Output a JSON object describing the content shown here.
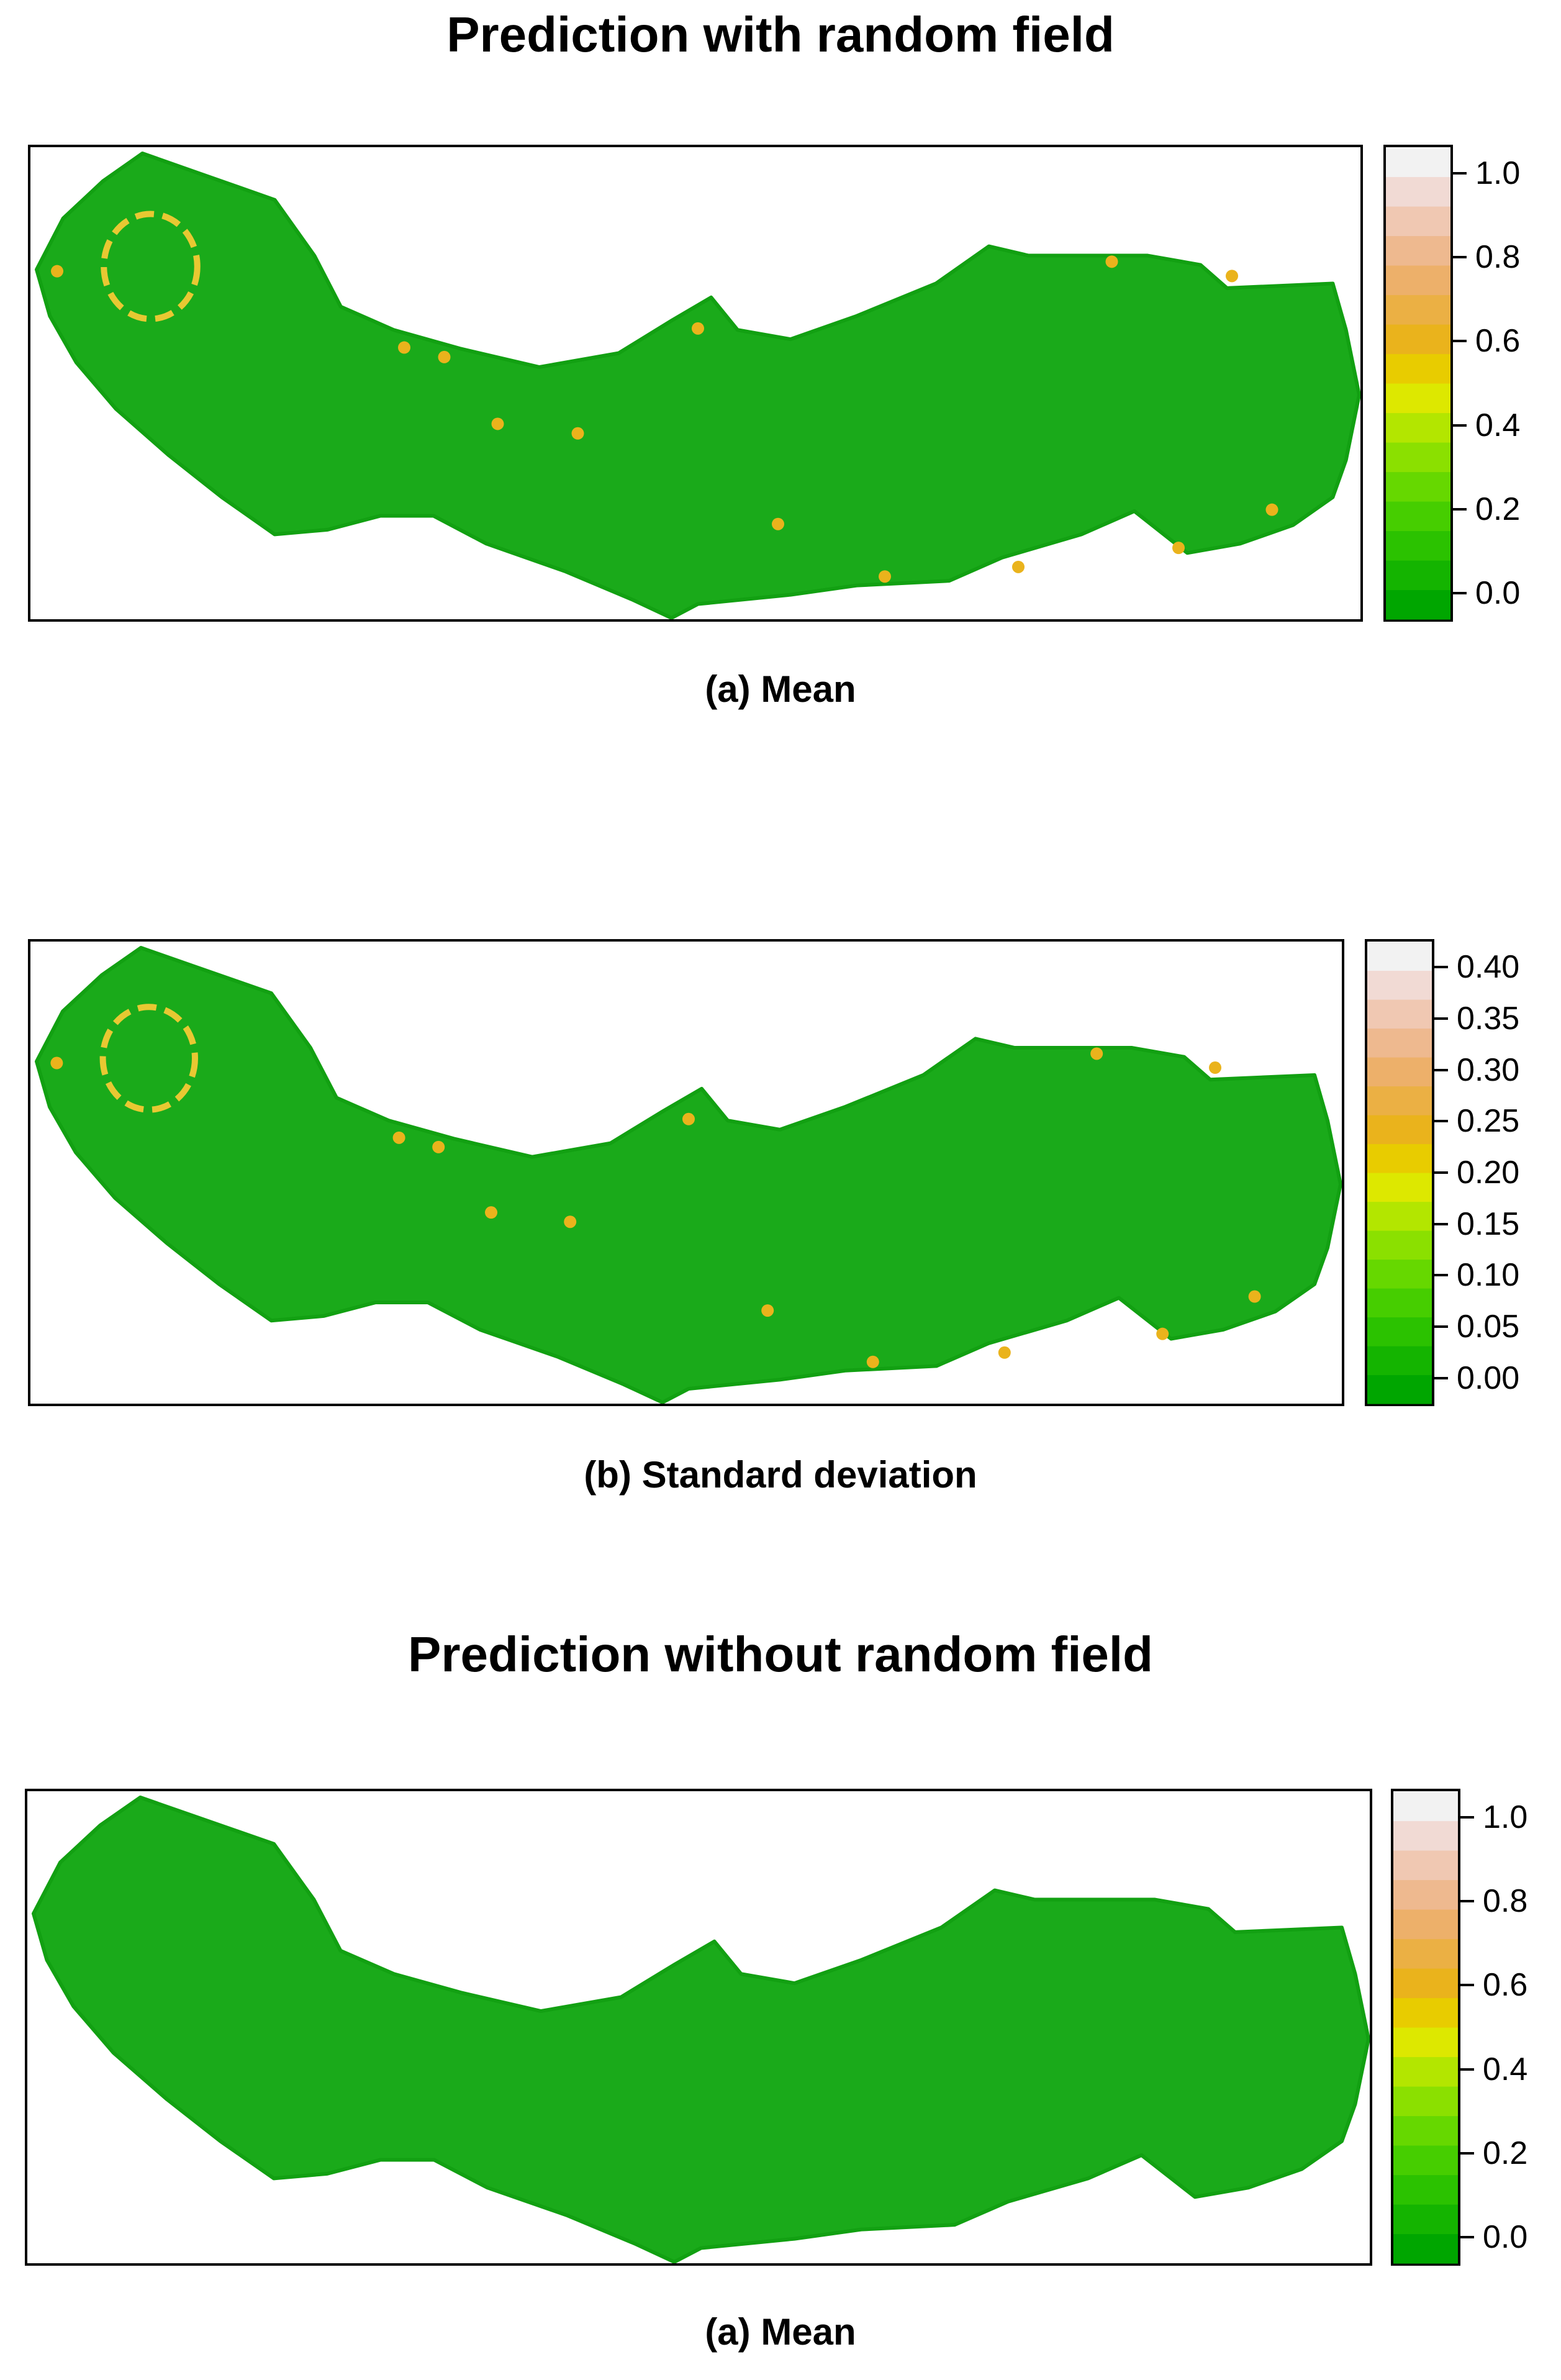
{
  "header1": {
    "title": "Prediction with random field"
  },
  "header2": {
    "title": "Prediction without random field"
  },
  "colors": {
    "ramp": [
      "#00a600",
      "#14b400",
      "#2bc200",
      "#46ce00",
      "#66d800",
      "#8be000",
      "#b3e600",
      "#dde800",
      "#e8cc00",
      "#eab31c",
      "#ebb044",
      "#edb06a",
      "#eeb98f",
      "#f0c8b2",
      "#f1dad4",
      "#f2f2f2"
    ],
    "island": "#1aaa1a"
  },
  "panels": [
    {
      "caption": "(a) Mean",
      "legend_ticks": [
        "1.0",
        "0.8",
        "0.6",
        "0.4",
        "0.2",
        "0.0"
      ],
      "legend_values": [
        1.0,
        0.8,
        0.6,
        0.4,
        0.2,
        0.0
      ]
    },
    {
      "caption": "(b) Standard deviation",
      "legend_ticks": [
        "0.40",
        "0.35",
        "0.30",
        "0.25",
        "0.20",
        "0.15",
        "0.10",
        "0.05",
        "0.00"
      ],
      "legend_values": [
        0.4,
        0.35,
        0.3,
        0.25,
        0.2,
        0.15,
        0.1,
        0.05,
        0.0
      ]
    },
    {
      "caption": "(a) Mean",
      "legend_ticks": [
        "1.0",
        "0.8",
        "0.6",
        "0.4",
        "0.2",
        "0.0"
      ],
      "legend_values": [
        1.0,
        0.8,
        0.6,
        0.4,
        0.2,
        0.0
      ]
    }
  ]
}
